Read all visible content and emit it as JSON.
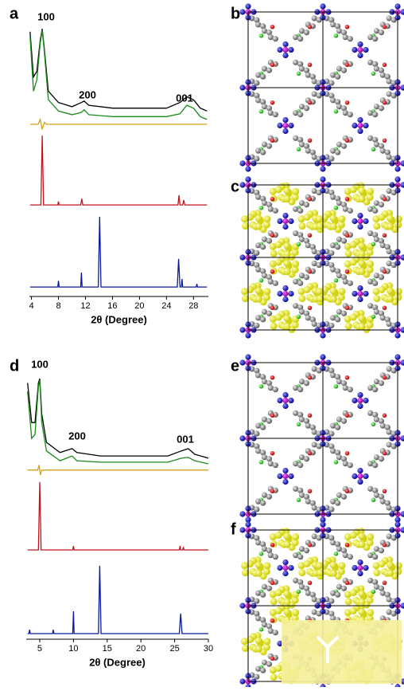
{
  "chart_data": [
    {
      "type": "line",
      "label": "a",
      "x_label": "2θ (Degree)",
      "xlim": [
        3.7,
        30.2
      ],
      "xticks": [
        4,
        8,
        12,
        16,
        20,
        24,
        28
      ],
      "ylim": [
        0,
        100
      ],
      "annotations": [
        "100",
        "200",
        "001"
      ],
      "series": [
        {
          "color": "#000000",
          "x": [
            3.8,
            4.3,
            4.8,
            5.3,
            5.6,
            5.9,
            6.5,
            8,
            10,
            11.4,
            11.8,
            12.5,
            16,
            24,
            26,
            27,
            28,
            29,
            30
          ],
          "values": [
            93,
            77,
            79,
            90,
            94,
            87,
            72,
            68,
            66.5,
            68,
            68.5,
            67,
            66,
            66,
            68,
            70,
            69,
            66,
            65
          ]
        },
        {
          "color": "#1a8a1a",
          "x": [
            3.8,
            4.3,
            4.8,
            5.3,
            5.6,
            5.9,
            6.5,
            8,
            10,
            11.4,
            11.8,
            12.5,
            16,
            24,
            26,
            27,
            28,
            29,
            30
          ],
          "values": [
            91.5,
            72,
            76,
            89,
            93.5,
            86,
            69,
            65,
            63.7,
            64.5,
            65.4,
            63.7,
            63,
            63,
            64,
            67,
            66,
            63,
            62
          ]
        },
        {
          "color": "#d4a017",
          "x": [
            3.8,
            5.0,
            5.3,
            5.6,
            5.9,
            6.2,
            30
          ],
          "values": [
            60.3,
            60.3,
            62,
            58.5,
            61,
            60.3,
            60.3
          ]
        },
        {
          "color": "#c0141c",
          "x": [
            3.8,
            5.4,
            5.6,
            5.8,
            7.9,
            8.0,
            8.1,
            11.3,
            11.45,
            11.6,
            25.7,
            25.85,
            26.0,
            26.4,
            26.55,
            26.7,
            30
          ],
          "values": [
            31.8,
            31.8,
            56.3,
            31.8,
            31.8,
            33,
            31.8,
            31.8,
            34,
            31.8,
            31.8,
            35.2,
            31.8,
            31.8,
            33.5,
            31.8,
            31.8
          ]
        },
        {
          "color": "#0a1a9a",
          "x": [
            3.8,
            7.9,
            8.0,
            8.1,
            11.3,
            11.4,
            11.5,
            13.9,
            14.1,
            14.3,
            25.6,
            25.8,
            26.0,
            26.2,
            26.3,
            26.4,
            28.4,
            28.5,
            28.6,
            30
          ],
          "values": [
            2.8,
            2.8,
            5,
            2.8,
            2.8,
            7.9,
            2.8,
            2.8,
            27.6,
            2.8,
            2.8,
            12.7,
            2.8,
            2.8,
            5.6,
            2.8,
            2.8,
            3.9,
            2.8,
            2.8
          ]
        }
      ]
    },
    {
      "type": "line",
      "label": "d",
      "x_label": "2θ (Degree)",
      "xlim": [
        3,
        30
      ],
      "xticks": [
        5,
        10,
        15,
        20,
        25,
        30
      ],
      "ylim": [
        0,
        100
      ],
      "annotations": [
        "100",
        "200",
        "001"
      ],
      "series": [
        {
          "color": "#000000",
          "x": [
            3.2,
            3.8,
            4.3,
            4.8,
            5.0,
            5.3,
            6,
            8,
            9.8,
            10.5,
            14,
            24,
            26,
            27,
            28,
            30
          ],
          "values": [
            90,
            76,
            76,
            90,
            91.5,
            79,
            69,
            65.4,
            66.8,
            65.4,
            64.2,
            64.2,
            66,
            66.8,
            64.8,
            63.4
          ]
        },
        {
          "color": "#1a8a1a",
          "x": [
            3.2,
            3.8,
            4.3,
            4.8,
            5.0,
            5.3,
            6,
            8,
            9.8,
            10.5,
            14,
            24,
            26,
            27,
            28,
            30
          ],
          "values": [
            87,
            70.4,
            71.8,
            88.7,
            91,
            76,
            66,
            62.5,
            64.2,
            62.5,
            62,
            62,
            63.4,
            63.7,
            62.5,
            61.4
          ]
        },
        {
          "color": "#d4a017",
          "x": [
            3.2,
            4.7,
            4.9,
            5.1,
            5.3,
            30
          ],
          "values": [
            59.2,
            59.2,
            61,
            57.5,
            59.2,
            59.2
          ]
        },
        {
          "color": "#c0141c",
          "x": [
            3.2,
            4.8,
            5.0,
            5.2,
            9.9,
            10.0,
            10.1,
            25.7,
            25.8,
            25.9,
            26.2,
            26.3,
            26.4,
            30
          ],
          "values": [
            31,
            31,
            55,
            31,
            31,
            32.4,
            31,
            31,
            32.4,
            31,
            31,
            32,
            31,
            31
          ]
        },
        {
          "color": "#0a1a9a",
          "x": [
            3.2,
            3.4,
            3.5,
            3.6,
            6.9,
            7.0,
            7.1,
            9.9,
            10.0,
            10.1,
            13.7,
            13.9,
            14.1,
            25.7,
            25.9,
            26.1,
            30
          ],
          "values": [
            1.4,
            1.4,
            2.8,
            1.4,
            1.4,
            2.8,
            1.4,
            1.4,
            9.3,
            1.4,
            1.4,
            25.4,
            1.4,
            1.4,
            8.5,
            1.4,
            1.4
          ]
        }
      ]
    }
  ],
  "structures": [
    {
      "label": "b"
    },
    {
      "label": "c"
    },
    {
      "label": "e"
    },
    {
      "label": "f"
    }
  ]
}
